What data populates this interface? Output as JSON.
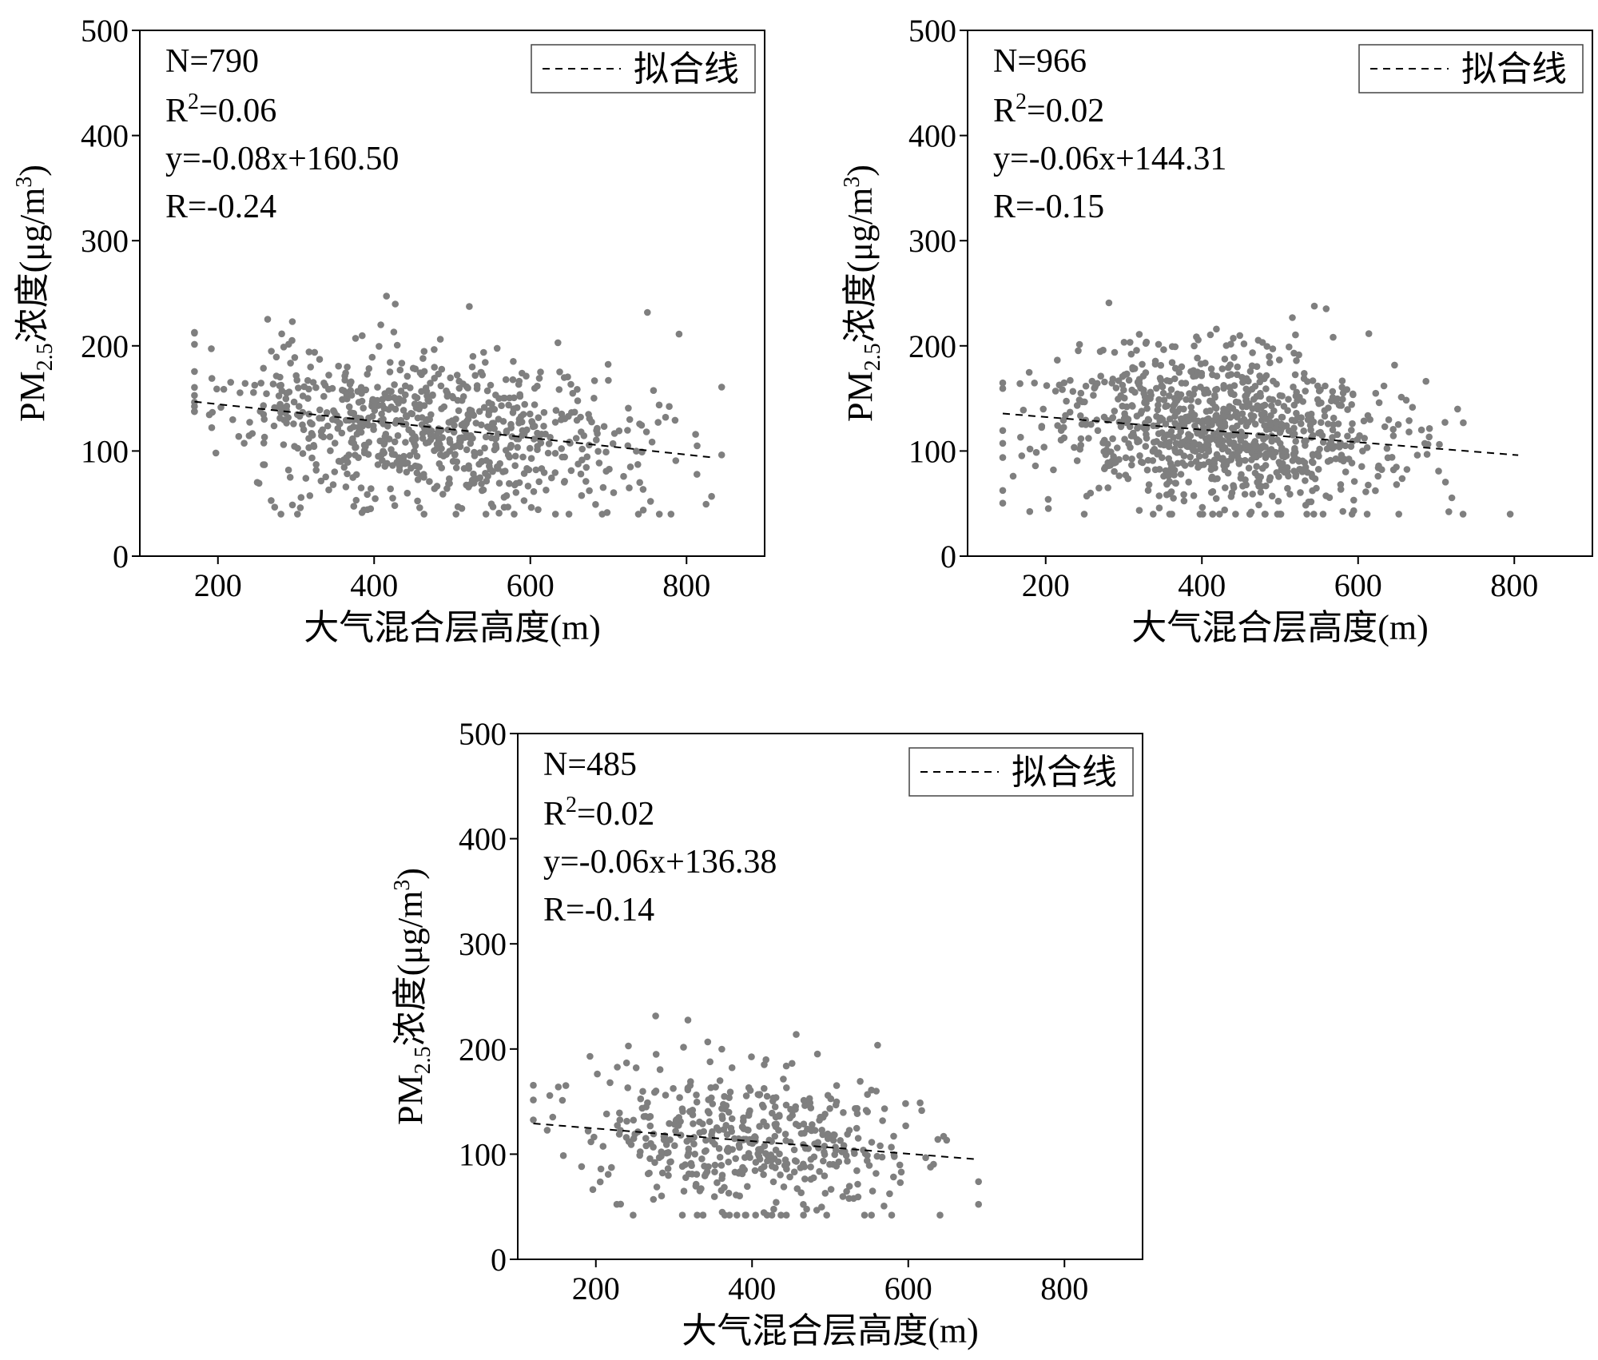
{
  "chart_data": [
    {
      "type": "scatter",
      "xlabel": "大气混合层高度(m)",
      "ylabel": {
        "main": "PM",
        "sub": "2.5",
        "mid": "浓度(μg/m",
        "sup": "3",
        "end": ")"
      },
      "xlim": [
        100,
        900
      ],
      "ylim": [
        0,
        500
      ],
      "xticks": [
        200,
        400,
        600,
        800
      ],
      "yticks": [
        0,
        100,
        200,
        300,
        400,
        500
      ],
      "grid": false,
      "legend": {
        "placement": "top-right",
        "label": "拟合线"
      },
      "stats": {
        "n": "N=790",
        "r2_base": "R",
        "r2_sup": "2",
        "r2_val": "=0.06",
        "equation": "y=-0.08x+160.50",
        "r": "R=-0.24"
      },
      "fit": {
        "slope": -0.08,
        "intercept": 160.5,
        "x_range": [
          170,
          830
        ]
      },
      "scatter": {
        "count": 790,
        "seed": 11,
        "x_mean": 470,
        "x_sd": 135,
        "x_min": 170,
        "x_max": 845,
        "y_sd": 38,
        "y_min": 40,
        "y_max": 290
      },
      "series": [
        {
          "values": "points"
        }
      ]
    },
    {
      "type": "scatter",
      "xlabel": "大气混合层高度(m)",
      "ylabel": {
        "main": "PM",
        "sub": "2.5",
        "mid": "浓度(μg/m",
        "sup": "3",
        "end": ")"
      },
      "xlim": [
        100,
        900
      ],
      "ylim": [
        0,
        500
      ],
      "xticks": [
        200,
        400,
        600,
        800
      ],
      "yticks": [
        0,
        100,
        200,
        300,
        400,
        500
      ],
      "grid": false,
      "legend": {
        "placement": "top-right",
        "label": "拟合线"
      },
      "stats": {
        "n": "N=966",
        "r2_base": "R",
        "r2_sup": "2",
        "r2_val": "=0.02",
        "equation": "y=-0.06x+144.31",
        "r": "R=-0.15"
      },
      "fit": {
        "slope": -0.06,
        "intercept": 144.31,
        "x_range": [
          145,
          805
        ]
      },
      "scatter": {
        "count": 966,
        "seed": 23,
        "x_mean": 420,
        "x_sd": 110,
        "x_min": 145,
        "x_max": 805,
        "y_sd": 38,
        "y_min": 40,
        "y_max": 300
      },
      "series": [
        {
          "values": "points"
        }
      ]
    },
    {
      "type": "scatter",
      "xlabel": "大气混合层高度(m)",
      "ylabel": {
        "main": "PM",
        "sub": "2.5",
        "mid": "浓度(μg/m",
        "sup": "3",
        "end": ")"
      },
      "xlim": [
        100,
        900
      ],
      "ylim": [
        0,
        500
      ],
      "xticks": [
        200,
        400,
        600,
        800
      ],
      "yticks": [
        0,
        100,
        200,
        300,
        400,
        500
      ],
      "grid": false,
      "legend": {
        "placement": "top-right",
        "label": "拟合线"
      },
      "stats": {
        "n": "N=485",
        "r2_base": "R",
        "r2_sup": "2",
        "r2_val": "=0.02",
        "equation": "y=-0.06x+136.38",
        "r": "R=-0.14"
      },
      "fit": {
        "slope": -0.06,
        "intercept": 136.38,
        "x_range": [
          120,
          690
        ]
      },
      "scatter": {
        "count": 485,
        "seed": 37,
        "x_mean": 400,
        "x_sd": 105,
        "x_min": 120,
        "x_max": 690,
        "y_sd": 36,
        "y_min": 42,
        "y_max": 305
      },
      "series": [
        {
          "values": "points"
        }
      ]
    }
  ],
  "colors": {
    "points": "#7f7f7f",
    "axis": "#000000",
    "fit": "#000000"
  }
}
